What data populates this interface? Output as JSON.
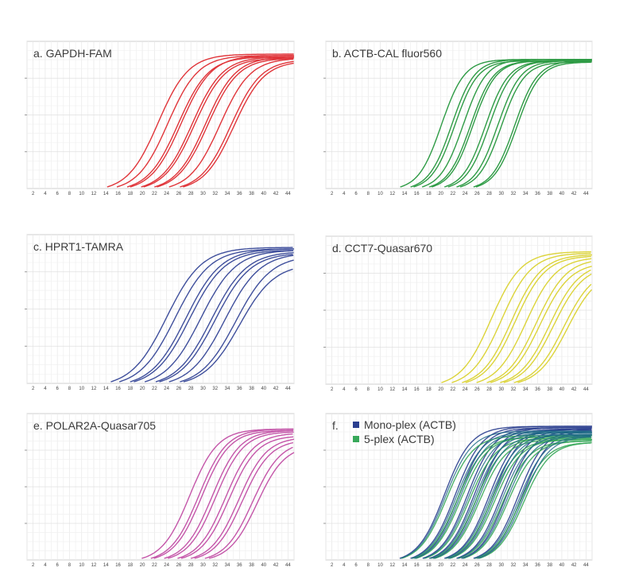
{
  "chart_data": [
    {
      "type": "line",
      "title": "a. GAPDH-FAM",
      "color": "#e0353a",
      "x_ticks": [
        2,
        4,
        6,
        8,
        10,
        12,
        14,
        16,
        18,
        20,
        22,
        24,
        26,
        28,
        30,
        32,
        34,
        36,
        38,
        40,
        42,
        44
      ],
      "xlim": [
        1,
        45
      ],
      "grid": true,
      "curves": [
        {
          "start": 14.2,
          "mid": 22.6,
          "plateau": 1.0,
          "width": 2.5
        },
        {
          "start": 15.8,
          "mid": 24.2,
          "plateau": 0.99,
          "width": 2.5
        },
        {
          "start": 17.5,
          "mid": 25.9,
          "plateau": 0.98,
          "width": 2.5
        },
        {
          "start": 18.0,
          "mid": 26.4,
          "plateau": 0.99,
          "width": 2.5
        },
        {
          "start": 19.8,
          "mid": 28.2,
          "plateau": 0.98,
          "width": 2.5
        },
        {
          "start": 20.2,
          "mid": 28.6,
          "plateau": 0.97,
          "width": 2.5
        },
        {
          "start": 22.0,
          "mid": 30.4,
          "plateau": 0.98,
          "width": 2.5
        },
        {
          "start": 22.4,
          "mid": 30.8,
          "plateau": 0.97,
          "width": 2.5
        },
        {
          "start": 24.4,
          "mid": 32.8,
          "plateau": 0.97,
          "width": 2.5
        },
        {
          "start": 26.2,
          "mid": 34.6,
          "plateau": 0.96,
          "width": 2.5
        },
        {
          "start": 26.7,
          "mid": 35.1,
          "plateau": 0.95,
          "width": 2.5
        }
      ]
    },
    {
      "type": "line",
      "title": "b. ACTB-CAL fluor560",
      "color": "#2e9b45",
      "x_ticks": [
        2,
        4,
        6,
        8,
        10,
        12,
        14,
        16,
        18,
        20,
        22,
        24,
        26,
        28,
        30,
        32,
        34,
        36,
        38,
        40,
        42,
        44
      ],
      "xlim": [
        1,
        45
      ],
      "grid": true,
      "curves": [
        {
          "start": 13.3,
          "mid": 20.1,
          "plateau": 0.96,
          "width": 1.9
        },
        {
          "start": 15.0,
          "mid": 21.8,
          "plateau": 0.96,
          "width": 1.9
        },
        {
          "start": 15.5,
          "mid": 22.3,
          "plateau": 0.95,
          "width": 1.9
        },
        {
          "start": 16.9,
          "mid": 23.7,
          "plateau": 0.96,
          "width": 1.9
        },
        {
          "start": 18.1,
          "mid": 24.9,
          "plateau": 0.95,
          "width": 1.9
        },
        {
          "start": 18.5,
          "mid": 25.3,
          "plateau": 0.95,
          "width": 1.9
        },
        {
          "start": 20.6,
          "mid": 27.4,
          "plateau": 0.95,
          "width": 1.9
        },
        {
          "start": 21.2,
          "mid": 28.0,
          "plateau": 0.95,
          "width": 1.9
        },
        {
          "start": 22.6,
          "mid": 29.4,
          "plateau": 0.95,
          "width": 1.9
        },
        {
          "start": 23.2,
          "mid": 30.0,
          "plateau": 0.94,
          "width": 1.9
        },
        {
          "start": 25.4,
          "mid": 32.2,
          "plateau": 0.95,
          "width": 1.9
        },
        {
          "start": 25.8,
          "mid": 32.6,
          "plateau": 0.94,
          "width": 1.9
        }
      ]
    },
    {
      "type": "line",
      "title": "c. HPRT1-TAMRA",
      "color": "#3f4f9c",
      "x_ticks": [
        2,
        4,
        6,
        8,
        10,
        12,
        14,
        16,
        18,
        20,
        22,
        24,
        26,
        28,
        30,
        32,
        34,
        36,
        38,
        40,
        42,
        44
      ],
      "xlim": [
        1,
        45
      ],
      "grid": true,
      "curves": [
        {
          "start": 14.8,
          "mid": 24.0,
          "plateau": 1.0,
          "width": 2.9
        },
        {
          "start": 16.2,
          "mid": 25.4,
          "plateau": 0.99,
          "width": 2.9
        },
        {
          "start": 18.0,
          "mid": 27.2,
          "plateau": 0.99,
          "width": 2.9
        },
        {
          "start": 18.6,
          "mid": 27.8,
          "plateau": 0.98,
          "width": 2.9
        },
        {
          "start": 20.4,
          "mid": 29.6,
          "plateau": 0.98,
          "width": 2.9
        },
        {
          "start": 22.2,
          "mid": 31.4,
          "plateau": 0.97,
          "width": 2.9
        },
        {
          "start": 22.8,
          "mid": 32.0,
          "plateau": 0.96,
          "width": 2.9
        },
        {
          "start": 24.4,
          "mid": 33.6,
          "plateau": 0.96,
          "width": 2.9
        },
        {
          "start": 26.2,
          "mid": 35.4,
          "plateau": 0.94,
          "width": 2.9
        },
        {
          "start": 26.8,
          "mid": 36.0,
          "plateau": 0.88,
          "width": 2.9
        }
      ]
    },
    {
      "type": "line",
      "title": "d. CCT7-Quasar670",
      "color": "#dcd43a",
      "x_ticks": [
        2,
        4,
        6,
        8,
        10,
        12,
        14,
        16,
        18,
        20,
        22,
        24,
        26,
        28,
        30,
        32,
        34,
        36,
        38,
        40,
        42,
        44
      ],
      "xlim": [
        1,
        45
      ],
      "grid": true,
      "curves": [
        {
          "start": 20.1,
          "mid": 28.3,
          "plateau": 0.98,
          "width": 2.5
        },
        {
          "start": 21.8,
          "mid": 30.0,
          "plateau": 0.97,
          "width": 2.5
        },
        {
          "start": 23.5,
          "mid": 31.7,
          "plateau": 0.96,
          "width": 2.5
        },
        {
          "start": 24.1,
          "mid": 32.3,
          "plateau": 0.95,
          "width": 2.5
        },
        {
          "start": 25.9,
          "mid": 34.1,
          "plateau": 0.94,
          "width": 2.5
        },
        {
          "start": 27.6,
          "mid": 35.8,
          "plateau": 0.93,
          "width": 2.5
        },
        {
          "start": 28.2,
          "mid": 36.4,
          "plateau": 0.9,
          "width": 2.5
        },
        {
          "start": 29.8,
          "mid": 38.0,
          "plateau": 0.9,
          "width": 2.5
        },
        {
          "start": 30.4,
          "mid": 38.6,
          "plateau": 0.88,
          "width": 2.5
        },
        {
          "start": 32.1,
          "mid": 40.3,
          "plateau": 0.86,
          "width": 2.5
        },
        {
          "start": 32.7,
          "mid": 40.9,
          "plateau": 0.84,
          "width": 2.5
        }
      ]
    },
    {
      "type": "line",
      "title": "e. POLAR2A-Quasar705",
      "color": "#c456a9",
      "x_ticks": [
        2,
        4,
        6,
        8,
        10,
        12,
        14,
        16,
        18,
        20,
        22,
        24,
        26,
        28,
        30,
        32,
        34,
        36,
        38,
        40,
        42,
        44
      ],
      "xlim": [
        1,
        45
      ],
      "grid": true,
      "curves": [
        {
          "start": 19.9,
          "mid": 27.8,
          "plateau": 0.98,
          "width": 2.3
        },
        {
          "start": 21.4,
          "mid": 29.3,
          "plateau": 0.98,
          "width": 2.3
        },
        {
          "start": 21.9,
          "mid": 29.8,
          "plateau": 0.97,
          "width": 2.3
        },
        {
          "start": 23.6,
          "mid": 31.5,
          "plateau": 0.97,
          "width": 2.3
        },
        {
          "start": 24.2,
          "mid": 32.1,
          "plateau": 0.96,
          "width": 2.3
        },
        {
          "start": 25.8,
          "mid": 33.7,
          "plateau": 0.95,
          "width": 2.3
        },
        {
          "start": 26.4,
          "mid": 34.3,
          "plateau": 0.93,
          "width": 2.3
        },
        {
          "start": 28.0,
          "mid": 35.9,
          "plateau": 0.92,
          "width": 2.3
        },
        {
          "start": 28.6,
          "mid": 36.5,
          "plateau": 0.9,
          "width": 2.3
        },
        {
          "start": 30.3,
          "mid": 38.2,
          "plateau": 0.89,
          "width": 2.3
        },
        {
          "start": 31.0,
          "mid": 38.9,
          "plateau": 0.86,
          "width": 2.3
        }
      ]
    },
    {
      "type": "line",
      "title": "f.",
      "x_ticks": [
        2,
        4,
        6,
        8,
        10,
        12,
        14,
        16,
        18,
        20,
        22,
        24,
        26,
        28,
        30,
        32,
        34,
        36,
        38,
        40,
        42,
        44
      ],
      "xlim": [
        1,
        45
      ],
      "grid": true,
      "legend_position": "top-left",
      "series": [
        {
          "name": "Mono-plex (ACTB)",
          "color": "#2b3f8f",
          "curves": [
            {
              "start": 13.2,
              "mid": 20.6,
              "plateau": 1.0,
              "width": 2.2
            },
            {
              "start": 15.0,
              "mid": 22.4,
              "plateau": 1.0,
              "width": 2.2
            },
            {
              "start": 15.6,
              "mid": 23.0,
              "plateau": 0.99,
              "width": 2.2
            },
            {
              "start": 17.0,
              "mid": 24.4,
              "plateau": 0.99,
              "width": 2.2
            },
            {
              "start": 18.1,
              "mid": 25.5,
              "plateau": 0.99,
              "width": 2.2
            },
            {
              "start": 18.7,
              "mid": 26.1,
              "plateau": 0.98,
              "width": 2.2
            },
            {
              "start": 20.6,
              "mid": 28.0,
              "plateau": 0.98,
              "width": 2.2
            },
            {
              "start": 21.2,
              "mid": 28.6,
              "plateau": 0.98,
              "width": 2.2
            },
            {
              "start": 22.6,
              "mid": 30.0,
              "plateau": 0.98,
              "width": 2.2
            },
            {
              "start": 23.4,
              "mid": 30.8,
              "plateau": 0.97,
              "width": 2.2
            },
            {
              "start": 25.4,
              "mid": 32.8,
              "plateau": 0.98,
              "width": 2.2
            },
            {
              "start": 26.0,
              "mid": 33.4,
              "plateau": 0.97,
              "width": 2.2
            }
          ]
        },
        {
          "name": "5-plex (ACTB)",
          "color": "#38a85a",
          "curves": [
            {
              "start": 13.5,
              "mid": 20.9,
              "plateau": 0.93,
              "width": 2.2
            },
            {
              "start": 15.3,
              "mid": 22.7,
              "plateau": 0.92,
              "width": 2.2
            },
            {
              "start": 15.9,
              "mid": 23.3,
              "plateau": 0.92,
              "width": 2.2
            },
            {
              "start": 17.3,
              "mid": 24.7,
              "plateau": 0.91,
              "width": 2.2
            },
            {
              "start": 18.4,
              "mid": 25.8,
              "plateau": 0.91,
              "width": 2.2
            },
            {
              "start": 19.0,
              "mid": 26.4,
              "plateau": 0.9,
              "width": 2.2
            },
            {
              "start": 20.9,
              "mid": 28.3,
              "plateau": 0.9,
              "width": 2.2
            },
            {
              "start": 21.5,
              "mid": 28.9,
              "plateau": 0.9,
              "width": 2.2
            },
            {
              "start": 22.9,
              "mid": 30.3,
              "plateau": 0.89,
              "width": 2.2
            },
            {
              "start": 23.7,
              "mid": 31.1,
              "plateau": 0.89,
              "width": 2.2
            },
            {
              "start": 25.7,
              "mid": 33.1,
              "plateau": 0.88,
              "width": 2.2
            },
            {
              "start": 26.3,
              "mid": 33.7,
              "plateau": 0.88,
              "width": 2.2
            }
          ]
        }
      ],
      "combined_color": "#1d6a86"
    }
  ]
}
